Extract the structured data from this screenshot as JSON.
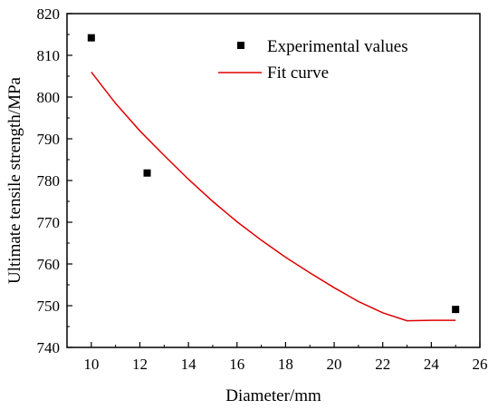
{
  "chart_data": {
    "type": "scatter",
    "xlabel": "Diameter/mm",
    "ylabel": "Ultimate tensile strength/MPa",
    "xlim": [
      9,
      26
    ],
    "ylim": [
      740,
      820
    ],
    "xticks": [
      10,
      12,
      14,
      16,
      18,
      20,
      22,
      24,
      26
    ],
    "yticks": [
      740,
      750,
      760,
      770,
      780,
      790,
      800,
      810,
      820
    ],
    "xtick_labels": [
      "10",
      "12",
      "14",
      "16",
      "18",
      "20",
      "22",
      "24",
      "26"
    ],
    "ytick_labels": [
      "740",
      "750",
      "760",
      "770",
      "780",
      "790",
      "800",
      "810",
      "820"
    ],
    "grid": false,
    "legend_position": "top-right",
    "series": [
      {
        "name": "Experimental values",
        "kind": "scatter",
        "color": "#000000",
        "marker": "square",
        "x": [
          10,
          12.3,
          25
        ],
        "y": [
          814.2,
          781.8,
          749.1
        ]
      },
      {
        "name": "Fit curve",
        "kind": "line",
        "color": "#e00000",
        "x": [
          10,
          11,
          12,
          13,
          14,
          15,
          16,
          17,
          18,
          19,
          20,
          21,
          22,
          23,
          24,
          25
        ],
        "y": [
          806.0,
          798.5,
          791.9,
          786.0,
          780.3,
          775.0,
          770.1,
          765.7,
          761.6,
          757.9,
          754.3,
          751.0,
          748.3,
          746.4,
          746.5,
          746.5
        ]
      }
    ]
  }
}
